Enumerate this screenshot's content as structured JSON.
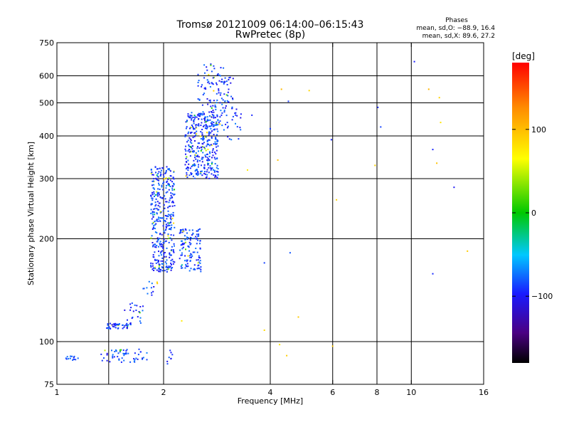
{
  "chart_data": {
    "type": "scatter",
    "title": "Tromsø 20121009 06:14:00–06:15:43",
    "subtitle": "RwPretec (8p)",
    "xlabel": "Frequency [MHz]",
    "ylabel": "Stationary phase Virtual Height [km]",
    "xscale": "log",
    "yscale": "log",
    "xlim": [
      1,
      16
    ],
    "ylim": [
      75,
      750
    ],
    "xticks": [
      1,
      2,
      4,
      6,
      8,
      10,
      16
    ],
    "xtick_labels": [
      "1",
      "2",
      "4",
      "6",
      "8",
      "10",
      "16"
    ],
    "yticks": [
      75,
      100,
      200,
      300,
      400,
      500,
      600,
      750
    ],
    "ytick_labels": [
      "75",
      "100",
      "200",
      "300",
      "400",
      "500",
      "600",
      "750"
    ],
    "xgrid": [
      1.4,
      2,
      4,
      6,
      8,
      10
    ],
    "ygrid": [
      100,
      200,
      300,
      400,
      500,
      600
    ],
    "grid": true,
    "phase_stats": {
      "heading": "Phases",
      "o_line": "mean, sd,O: −88.9, 16.4",
      "x_line": "mean, sd,X: 89.6, 27.2"
    },
    "colorbar": {
      "label": "[deg]",
      "range": [
        -180,
        180
      ],
      "ticks": [
        100,
        0,
        -100
      ],
      "tick_labels": [
        "100",
        "0",
        "−100"
      ]
    },
    "series": [
      {
        "mode": "O",
        "color_phase_deg": -90,
        "clusters": [
          {
            "f": [
              1.05,
              1.15
            ],
            "h": [
              88,
              91
            ],
            "n": 14
          },
          {
            "f": [
              1.33,
              1.82
            ],
            "h": [
              87,
              95
            ],
            "n": 55
          },
          {
            "f": [
              2.02,
              2.12
            ],
            "h": [
              85,
              95
            ],
            "n": 8
          },
          {
            "f": [
              1.38,
              1.62
            ],
            "h": [
              109,
              113
            ],
            "n": 45
          },
          {
            "f": [
              1.55,
              1.75
            ],
            "h": [
              112,
              132
            ],
            "n": 22
          },
          {
            "f": [
              1.73,
              1.92
            ],
            "h": [
              130,
              150
            ],
            "n": 12
          },
          {
            "f": [
              1.84,
              2.15
            ],
            "h": [
              160,
              325
            ],
            "n": 380
          },
          {
            "f": [
              2.22,
              2.55
            ],
            "h": [
              160,
              215
            ],
            "n": 120
          },
          {
            "f": [
              2.3,
              2.85
            ],
            "h": [
              300,
              470
            ],
            "n": 360
          },
          {
            "f": [
              2.5,
              2.95
            ],
            "h": [
              420,
              650
            ],
            "n": 110
          },
          {
            "f": [
              2.95,
              3.15
            ],
            "h": [
              500,
              600
            ],
            "n": 25
          },
          {
            "f": [
              2.95,
              3.35
            ],
            "h": [
              390,
              490
            ],
            "n": 30
          }
        ],
        "points": [
          [
            3.55,
            460
          ],
          [
            3.85,
            170
          ],
          [
            4.55,
            182
          ],
          [
            4.5,
            505
          ],
          [
            8.05,
            485
          ],
          [
            8.2,
            425
          ],
          [
            10.2,
            660
          ],
          [
            11.5,
            365
          ],
          [
            11.5,
            158
          ],
          [
            13.2,
            283
          ],
          [
            5.95,
            390
          ],
          [
            4.0,
            420
          ]
        ]
      },
      {
        "mode": "X",
        "color_phase_deg": 90,
        "points": [
          [
            4.3,
            548
          ],
          [
            5.15,
            543
          ],
          [
            12.0,
            518
          ],
          [
            12.1,
            438
          ],
          [
            11.2,
            548
          ],
          [
            7.9,
            328
          ],
          [
            11.8,
            333
          ],
          [
            4.25,
            98
          ],
          [
            4.45,
            91
          ],
          [
            6.0,
            97
          ],
          [
            3.85,
            108
          ],
          [
            4.8,
            118
          ],
          [
            2.25,
            115
          ],
          [
            3.45,
            318
          ],
          [
            4.2,
            340
          ],
          [
            14.4,
            184
          ],
          [
            6.15,
            260
          ],
          [
            1.92,
            148
          ]
        ]
      }
    ]
  }
}
